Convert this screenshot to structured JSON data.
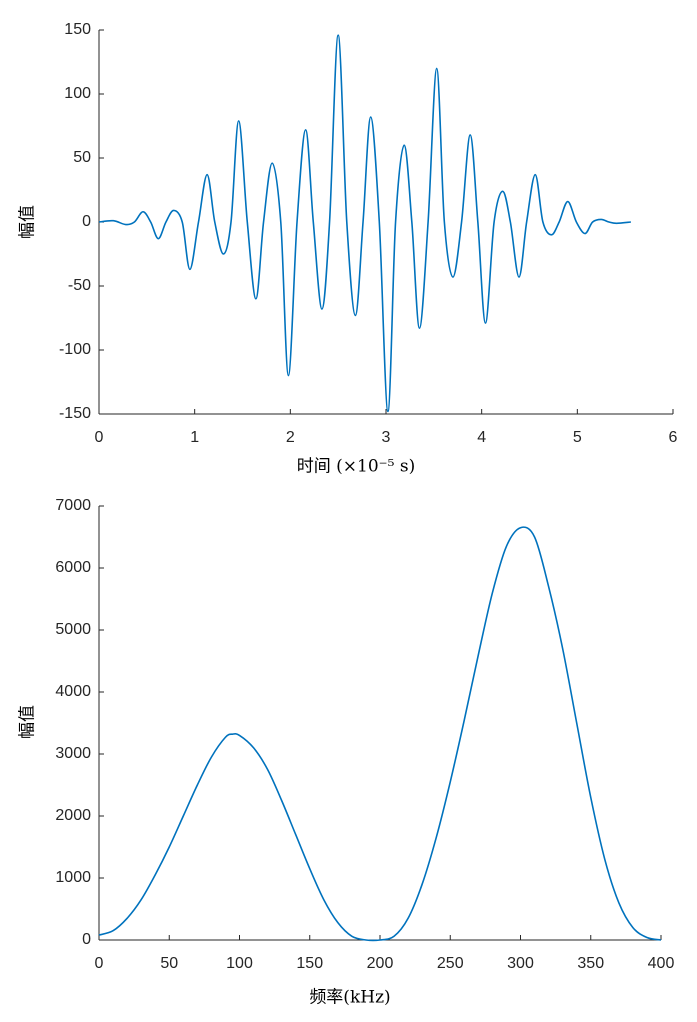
{
  "chart_data": [
    {
      "type": "line",
      "ylabel": "幅值",
      "xlabel": "时间 (×10⁻⁵ s)",
      "xlim": [
        0,
        6
      ],
      "xticks": [
        0,
        1,
        2,
        3,
        4,
        5,
        6
      ],
      "ylim": [
        -150,
        150
      ],
      "yticks": [
        -150,
        -100,
        -50,
        0,
        50,
        100,
        150
      ],
      "grid": false,
      "series": [
        {
          "color": "#0072bd",
          "x": [
            0,
            0.15,
            0.28,
            0.37,
            0.46,
            0.54,
            0.62,
            0.7,
            0.78,
            0.87,
            0.95,
            1.04,
            1.13,
            1.21,
            1.3,
            1.38,
            1.46,
            1.55,
            1.64,
            1.72,
            1.81,
            1.9,
            1.98,
            2.07,
            2.16,
            2.24,
            2.33,
            2.41,
            2.5,
            2.59,
            2.68,
            2.76,
            2.84,
            2.93,
            3.02,
            3.1,
            3.19,
            3.27,
            3.35,
            3.44,
            3.53,
            3.61,
            3.7,
            3.79,
            3.88,
            3.96,
            4.04,
            4.13,
            4.22,
            4.3,
            4.39,
            4.47,
            4.56,
            4.64,
            4.73,
            4.81,
            4.9,
            4.99,
            5.08,
            5.16,
            5.25,
            5.33,
            5.41,
            5.56
          ],
          "values": [
            0,
            1,
            -2,
            0,
            8,
            0,
            -13,
            0,
            9,
            0,
            -37,
            0,
            37,
            0,
            -25,
            0,
            79,
            0,
            -60,
            0,
            46,
            0,
            -120,
            0,
            72,
            0,
            -68,
            0,
            146,
            0,
            -73,
            0,
            82,
            0,
            -148,
            0,
            60,
            0,
            -83,
            0,
            120,
            0,
            -43,
            0,
            68,
            0,
            -79,
            0,
            24,
            0,
            -43,
            0,
            37,
            0,
            -10,
            0,
            16,
            0,
            -9,
            0,
            2,
            0,
            -1,
            0
          ]
        }
      ]
    },
    {
      "type": "line",
      "ylabel": "幅值",
      "xlabel": "频率(kHz)",
      "xlim": [
        0,
        400
      ],
      "xticks": [
        0,
        50,
        100,
        150,
        200,
        250,
        300,
        350,
        400
      ],
      "ylim": [
        0,
        7000
      ],
      "yticks": [
        0,
        1000,
        2000,
        3000,
        4000,
        5000,
        6000,
        7000
      ],
      "grid": false,
      "series": [
        {
          "color": "#0072bd",
          "x": [
            0,
            10,
            20,
            30,
            40,
            50,
            60,
            70,
            80,
            90,
            95,
            100,
            110,
            120,
            130,
            140,
            150,
            160,
            170,
            180,
            190,
            200,
            210,
            220,
            230,
            240,
            250,
            260,
            270,
            280,
            290,
            300,
            310,
            320,
            330,
            340,
            350,
            360,
            370,
            380,
            390,
            400
          ],
          "values": [
            80,
            150,
            350,
            650,
            1050,
            1500,
            2000,
            2500,
            2950,
            3270,
            3320,
            3300,
            3100,
            2750,
            2250,
            1700,
            1150,
            650,
            280,
            60,
            0,
            0,
            60,
            350,
            900,
            1650,
            2550,
            3550,
            4600,
            5600,
            6350,
            6650,
            6500,
            5700,
            4700,
            3500,
            2300,
            1300,
            600,
            200,
            40,
            0
          ]
        }
      ]
    }
  ]
}
